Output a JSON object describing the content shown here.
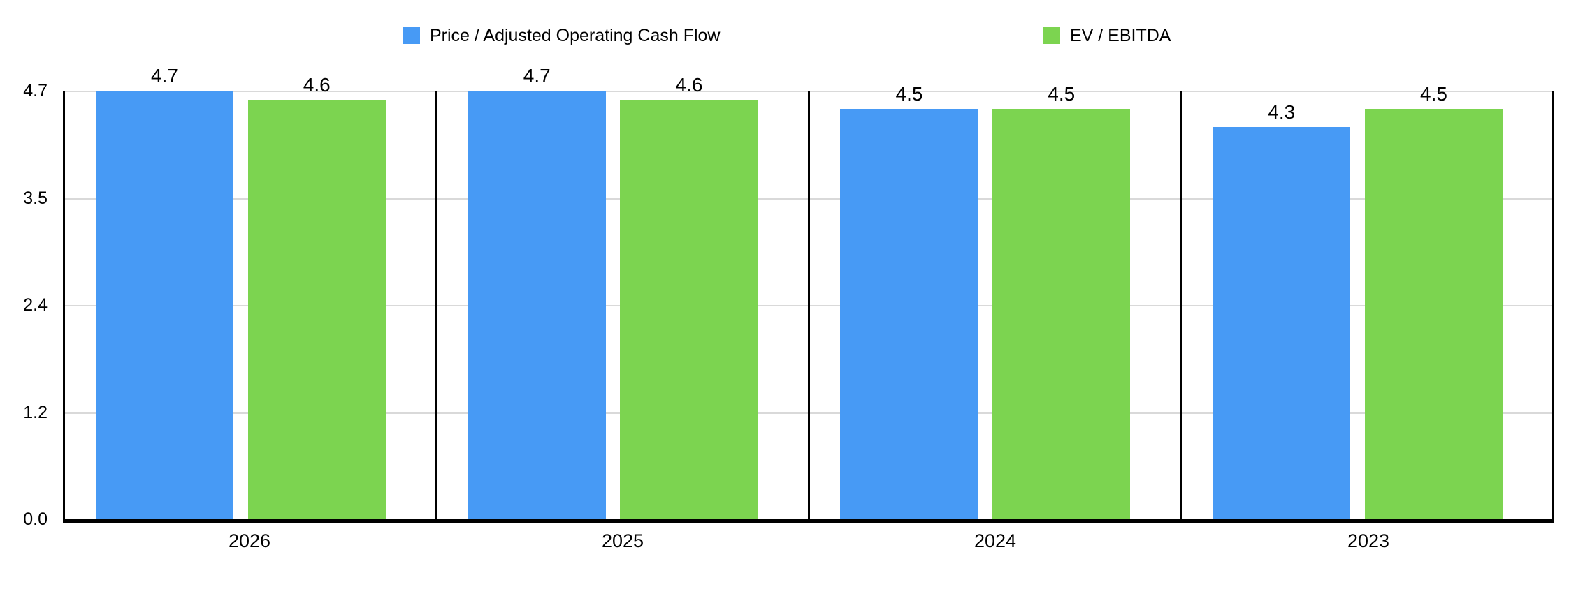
{
  "chart_data": {
    "type": "bar",
    "title": "",
    "xlabel": "",
    "ylabel": "",
    "categories": [
      "2026",
      "2025",
      "2024",
      "2023"
    ],
    "series": [
      {
        "name": "Price / Adjusted Operating Cash Flow",
        "color": "#479AF5",
        "values": [
          4.7,
          4.7,
          4.5,
          4.3
        ]
      },
      {
        "name": "EV / EBITDA",
        "color": "#7CD450",
        "values": [
          4.6,
          4.6,
          4.5,
          4.5
        ]
      }
    ],
    "value_labels": [
      "4.7",
      "4.6",
      "4.7",
      "4.6",
      "4.5",
      "4.5",
      "4.3",
      "4.5"
    ],
    "ylim": [
      0,
      4.7
    ],
    "y_tick_labels_top_to_bottom": [
      "4.7",
      "3.5",
      "2.4",
      "1.2",
      "0.0"
    ],
    "grid": true,
    "legend_position": "top",
    "colors": {
      "bar_blue": "#479AF5",
      "bar_green": "#7CD450",
      "gridline": "#D9D9D9",
      "axis": "#000000",
      "background": "#FFFFFF",
      "text": "#000000"
    }
  }
}
